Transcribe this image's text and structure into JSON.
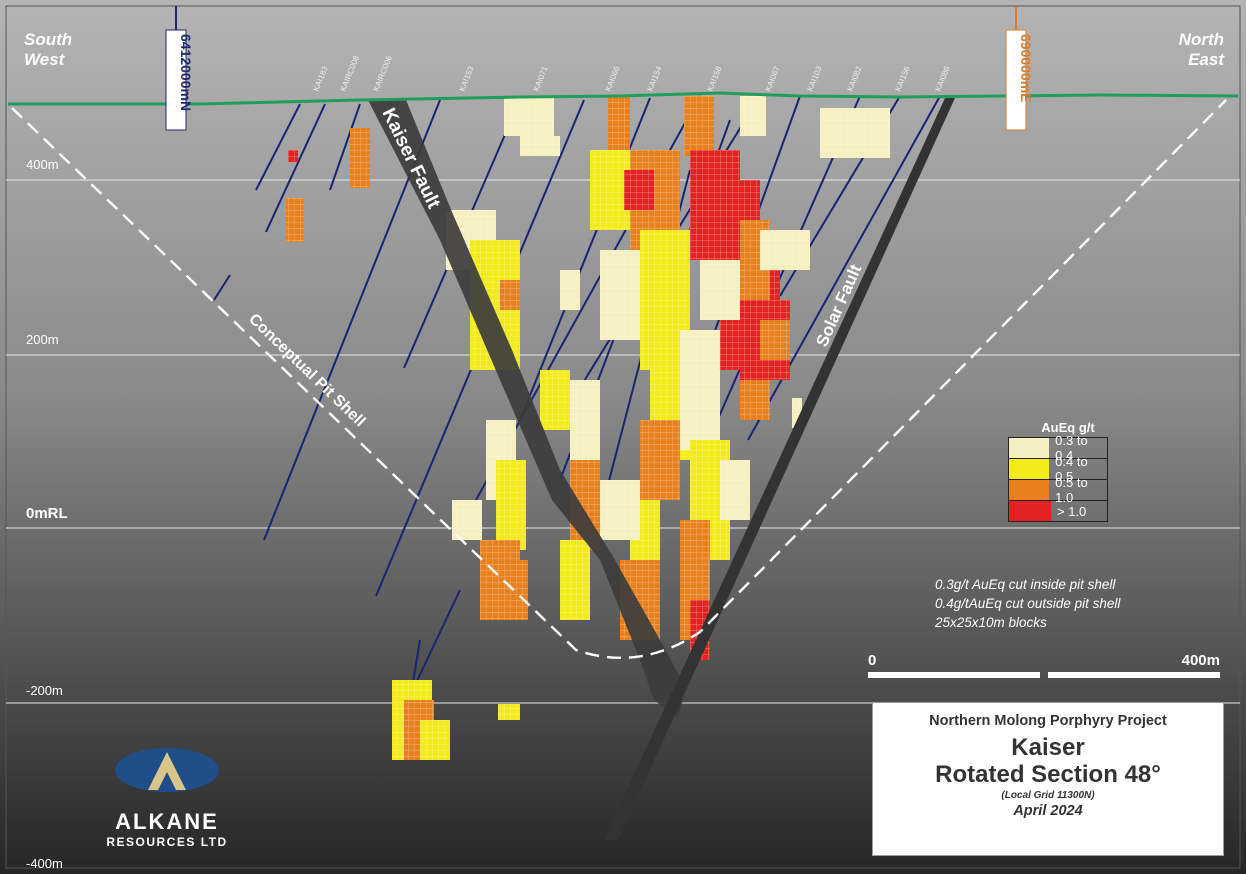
{
  "corners": {
    "left_line1": "South",
    "left_line2": "West",
    "right_line1": "North",
    "right_line2": "East"
  },
  "grid_markers": {
    "northing": "6412000mN",
    "easting": "690000mE",
    "northing_color": "#1f2a6e",
    "easting_color": "#d97b2a"
  },
  "elevations": {
    "l400": "400m",
    "l200": "200m",
    "l0": "0mRL",
    "lm200": "-200m",
    "lm400": "-400m"
  },
  "drillholes": [
    "KAI183",
    "KAIRC008",
    "KAIRC006",
    "KAI153",
    "KAI071",
    "KAI066",
    "KAI154",
    "KAI158",
    "KAI067",
    "KAI103",
    "KAI082",
    "KAI156",
    "KAI086"
  ],
  "features": {
    "kaiser_fault": "Kaiser Fault",
    "solar_fault": "Solar Fault",
    "pit_shell": "Conceptual Pit Shell"
  },
  "legend": {
    "title": "AuEq g/t",
    "items": [
      {
        "label": "0.3 to 0.4",
        "color": "#f6efc0"
      },
      {
        "label": "0.4 to 0.5",
        "color": "#f2ea1a"
      },
      {
        "label": "0.5 to 1.0",
        "color": "#e8801e"
      },
      {
        "label": "> 1.0",
        "color": "#e32222"
      }
    ]
  },
  "notes": {
    "line1": "0.3g/t AuEq cut inside pit shell",
    "line2": "0.4g/tAuEq cut outside pit shell",
    "line3": "25x25x10m blocks"
  },
  "scale": {
    "start": "0",
    "end": "400m"
  },
  "titlebox": {
    "project": "Northern Molong Porphyry Project",
    "name": "Kaiser",
    "section": "Rotated Section 48°",
    "grid": "(Local Grid 11300N)",
    "date": "April 2024"
  },
  "logo": {
    "name": "ALKANE",
    "sub": "RESOURCES LTD"
  },
  "colors": {
    "topography": "#1f9e5a",
    "drillhole": "#1a2470",
    "fault": "#3a3a3a",
    "background_top": "#aaaaaa",
    "background_bottom": "#222222"
  }
}
